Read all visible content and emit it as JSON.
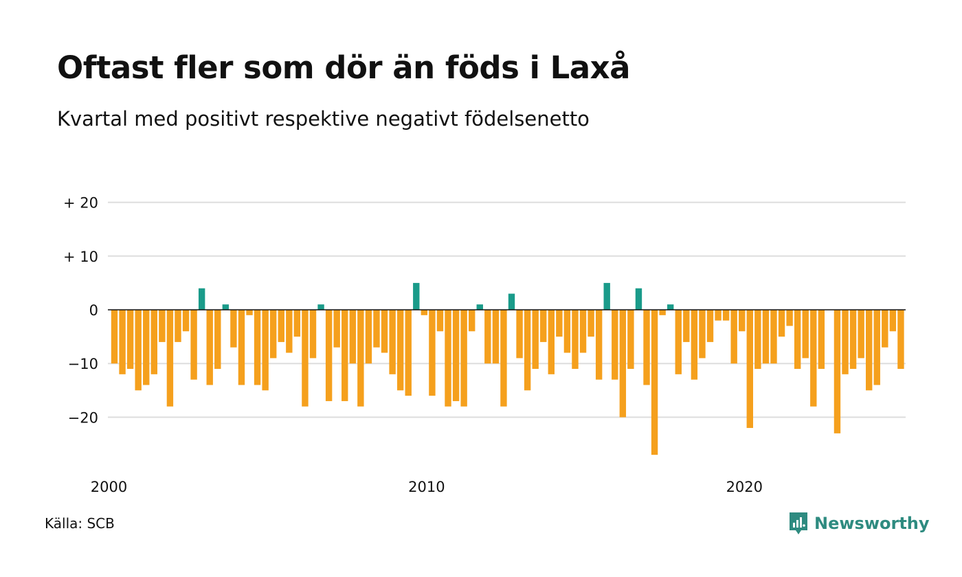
{
  "header": {
    "title": "Oftast fler som dör än föds i Laxå",
    "subtitle": "Kvartal med positivt respektive negativt födelsenetto"
  },
  "footer": {
    "source": "Källa: SCB",
    "brand": "Newsworthy",
    "brand_icon": "newsworthy-logo-icon"
  },
  "colors": {
    "positive": "#1a9b8a",
    "negative": "#f5a01d",
    "grid": "#dddddd",
    "zero_line": "#111111",
    "brand": "#2e8b80"
  },
  "chart_data": {
    "type": "bar",
    "title": "Oftast fler som dör än föds i Laxå",
    "subtitle": "Kvartal med positivt respektive negativt födelsenetto",
    "xlabel": "",
    "ylabel": "",
    "x_start": 2000,
    "periods_per_year": 4,
    "x_ticks": [
      "2000",
      "2010",
      "2020"
    ],
    "y_ticks": [
      {
        "value": 20,
        "label": "+ 20"
      },
      {
        "value": 10,
        "label": "+ 10"
      },
      {
        "value": 0,
        "label": "0"
      },
      {
        "value": -10,
        "label": "−10"
      },
      {
        "value": -20,
        "label": "−20"
      }
    ],
    "ylim": [
      -28,
      20
    ],
    "grid": true,
    "values": [
      -10,
      -12,
      -11,
      -15,
      -14,
      -12,
      -6,
      -18,
      -6,
      -4,
      -13,
      4,
      -14,
      -11,
      1,
      -7,
      -14,
      -1,
      -14,
      -15,
      -9,
      -6,
      -8,
      -5,
      -18,
      -9,
      1,
      -17,
      -7,
      -17,
      -10,
      -18,
      -10,
      -7,
      -8,
      -12,
      -15,
      -16,
      5,
      -1,
      -16,
      -4,
      -18,
      -17,
      -18,
      -4,
      1,
      -10,
      -10,
      -18,
      3,
      -9,
      -15,
      -11,
      -6,
      -12,
      -5,
      -8,
      -11,
      -8,
      -5,
      -13,
      5,
      -13,
      -20,
      -11,
      4,
      -14,
      -27,
      -1,
      1,
      -12,
      -6,
      -13,
      -9,
      -6,
      -2,
      -2,
      -10,
      -4,
      -22,
      -11,
      -10,
      -10,
      -5,
      -3,
      -11,
      -9,
      -18,
      -11,
      0,
      -23,
      -12,
      -11,
      -9,
      -15,
      -14,
      -7,
      -4,
      -11
    ]
  }
}
